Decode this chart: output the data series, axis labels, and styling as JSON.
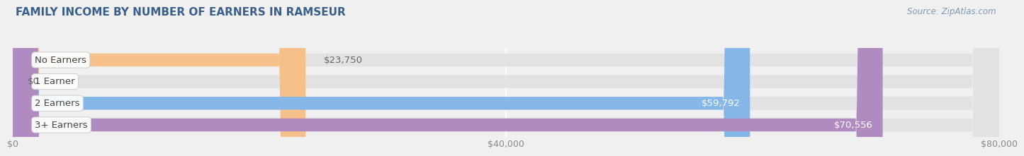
{
  "title": "FAMILY INCOME BY NUMBER OF EARNERS IN RAMSEUR",
  "source": "Source: ZipAtlas.com",
  "categories": [
    "No Earners",
    "1 Earner",
    "2 Earners",
    "3+ Earners"
  ],
  "values": [
    23750,
    0,
    59792,
    70556
  ],
  "bar_colors": [
    "#f5c08a",
    "#f0a0a8",
    "#85b8e8",
    "#b08bbf"
  ],
  "value_labels": [
    "$23,750",
    "$0",
    "$59,792",
    "$70,556"
  ],
  "value_inside": [
    false,
    false,
    true,
    true
  ],
  "xlim": [
    0,
    80000
  ],
  "xticks": [
    0,
    40000,
    80000
  ],
  "xtick_labels": [
    "$0",
    "$40,000",
    "$80,000"
  ],
  "bg_color": "#f0f0f0",
  "bar_bg_color": "#e2e2e2",
  "title_color": "#3a5f8a",
  "title_fontsize": 11,
  "source_fontsize": 8.5,
  "label_fontsize": 9.5,
  "value_fontsize": 9.5,
  "bar_height": 0.6
}
